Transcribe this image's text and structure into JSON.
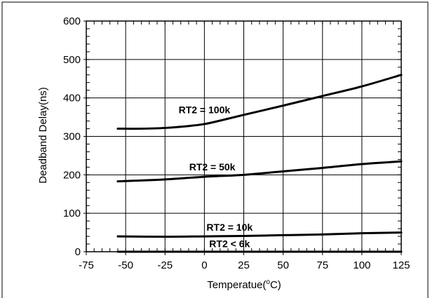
{
  "chart_data": {
    "type": "line",
    "xlabel": "Temperatue(",
    "xlabel_unit_sup": "o",
    "xlabel_unit": "C)",
    "ylabel": "Deadband Delay(ns)",
    "xlim": [
      -75,
      125
    ],
    "ylim": [
      0,
      600
    ],
    "x_ticks": [
      -75,
      -50,
      -25,
      0,
      25,
      50,
      75,
      100,
      125
    ],
    "x_tick_labels": [
      "-75",
      "-50",
      "-25",
      "0",
      "25",
      "50",
      "75",
      "100",
      "125"
    ],
    "y_ticks": [
      0,
      100,
      200,
      300,
      400,
      500,
      600
    ],
    "y_tick_labels": [
      "0",
      "100",
      "200",
      "300",
      "400",
      "500",
      "600"
    ],
    "grid": true,
    "series": [
      {
        "name": "RT2 = 100k",
        "x": [
          -55,
          -50,
          -40,
          -25,
          -10,
          0,
          10,
          25,
          50,
          75,
          100,
          125
        ],
        "y": [
          320,
          320,
          320,
          322,
          327,
          332,
          341,
          356,
          380,
          405,
          430,
          460
        ],
        "label_at": [
          0,
          360
        ]
      },
      {
        "name": "RT2 = 50k",
        "x": [
          -55,
          -25,
          0,
          25,
          50,
          75,
          100,
          125
        ],
        "y": [
          183,
          188,
          195,
          200,
          209,
          218,
          228,
          235
        ],
        "label_at": [
          5,
          212
        ]
      },
      {
        "name": "RT2 = 10k",
        "x": [
          -55,
          -25,
          0,
          25,
          50,
          75,
          100,
          125
        ],
        "y": [
          40,
          39,
          40,
          41,
          43,
          45,
          48,
          50
        ],
        "label_at": [
          16,
          55
        ]
      },
      {
        "name": "RT2 < 6k",
        "x": [
          -55,
          -25,
          0,
          25,
          50,
          75,
          100,
          125
        ],
        "y": [
          0,
          0,
          0,
          0,
          0,
          0,
          0,
          0
        ],
        "label_at": [
          16,
          12
        ]
      }
    ]
  }
}
